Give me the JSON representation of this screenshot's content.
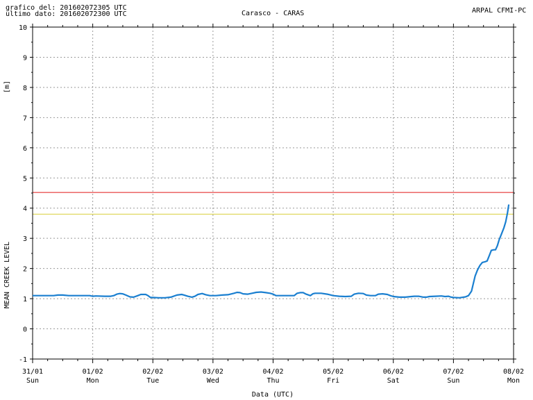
{
  "header": {
    "graph_time": "grafico del: 201602072305 UTC",
    "last_data": "ultimo dato: 201602072300 UTC",
    "station": "Carasco - CARAS",
    "source": "ARPAL CFMI-PC"
  },
  "chart_data": {
    "type": "line",
    "title": "Carasco - CARAS",
    "ylabel_unit": "[m]",
    "ylabel": "MEAN CREEK LEVEL",
    "xlabel": "Data (UTC)",
    "ylim": [
      -1,
      10
    ],
    "y_ticks": [
      -1,
      0,
      1,
      2,
      3,
      4,
      5,
      6,
      7,
      8,
      9,
      10
    ],
    "x_ticks": [
      {
        "date": "31/01",
        "day": "Sun"
      },
      {
        "date": "01/02",
        "day": "Mon"
      },
      {
        "date": "02/02",
        "day": "Tue"
      },
      {
        "date": "03/02",
        "day": "Wed"
      },
      {
        "date": "04/02",
        "day": "Thu"
      },
      {
        "date": "05/02",
        "day": "Fri"
      },
      {
        "date": "06/02",
        "day": "Sat"
      },
      {
        "date": "07/02",
        "day": "Sun"
      },
      {
        "date": "08/02",
        "day": "Mon"
      }
    ],
    "grid": true,
    "thresholds": [
      {
        "value": 4.52,
        "color": "#e01818"
      },
      {
        "value": 3.8,
        "color": "#d8cf3c"
      }
    ],
    "series": [
      {
        "color": "#1a7fd0",
        "points": [
          [
            0.0,
            1.1
          ],
          [
            0.2,
            1.1
          ],
          [
            0.35,
            1.1
          ],
          [
            0.42,
            1.12
          ],
          [
            0.5,
            1.12
          ],
          [
            0.6,
            1.1
          ],
          [
            0.8,
            1.1
          ],
          [
            0.95,
            1.1
          ],
          [
            1.0,
            1.08
          ],
          [
            1.05,
            1.09
          ],
          [
            1.2,
            1.08
          ],
          [
            1.3,
            1.08
          ],
          [
            1.35,
            1.1
          ],
          [
            1.4,
            1.15
          ],
          [
            1.45,
            1.17
          ],
          [
            1.5,
            1.16
          ],
          [
            1.55,
            1.12
          ],
          [
            1.62,
            1.06
          ],
          [
            1.68,
            1.05
          ],
          [
            1.75,
            1.1
          ],
          [
            1.8,
            1.14
          ],
          [
            1.88,
            1.14
          ],
          [
            1.92,
            1.1
          ],
          [
            1.96,
            1.04
          ],
          [
            2.0,
            1.04
          ],
          [
            2.1,
            1.03
          ],
          [
            2.2,
            1.03
          ],
          [
            2.3,
            1.05
          ],
          [
            2.4,
            1.12
          ],
          [
            2.48,
            1.14
          ],
          [
            2.52,
            1.12
          ],
          [
            2.58,
            1.08
          ],
          [
            2.65,
            1.05
          ],
          [
            2.7,
            1.08
          ],
          [
            2.75,
            1.14
          ],
          [
            2.82,
            1.17
          ],
          [
            2.88,
            1.13
          ],
          [
            2.95,
            1.1
          ],
          [
            3.05,
            1.1
          ],
          [
            3.15,
            1.12
          ],
          [
            3.25,
            1.13
          ],
          [
            3.35,
            1.18
          ],
          [
            3.4,
            1.21
          ],
          [
            3.45,
            1.2
          ],
          [
            3.5,
            1.16
          ],
          [
            3.58,
            1.15
          ],
          [
            3.65,
            1.18
          ],
          [
            3.72,
            1.21
          ],
          [
            3.8,
            1.22
          ],
          [
            3.88,
            1.2
          ],
          [
            3.95,
            1.18
          ],
          [
            4.0,
            1.15
          ],
          [
            4.05,
            1.1
          ],
          [
            4.2,
            1.1
          ],
          [
            4.35,
            1.1
          ],
          [
            4.4,
            1.18
          ],
          [
            4.45,
            1.2
          ],
          [
            4.5,
            1.2
          ],
          [
            4.55,
            1.15
          ],
          [
            4.62,
            1.1
          ],
          [
            4.66,
            1.16
          ],
          [
            4.7,
            1.18
          ],
          [
            4.8,
            1.18
          ],
          [
            4.9,
            1.15
          ],
          [
            5.0,
            1.1
          ],
          [
            5.1,
            1.08
          ],
          [
            5.2,
            1.07
          ],
          [
            5.3,
            1.08
          ],
          [
            5.35,
            1.15
          ],
          [
            5.42,
            1.18
          ],
          [
            5.5,
            1.17
          ],
          [
            5.55,
            1.12
          ],
          [
            5.62,
            1.1
          ],
          [
            5.7,
            1.1
          ],
          [
            5.75,
            1.15
          ],
          [
            5.82,
            1.16
          ],
          [
            5.9,
            1.14
          ],
          [
            5.95,
            1.1
          ],
          [
            6.0,
            1.07
          ],
          [
            6.1,
            1.05
          ],
          [
            6.2,
            1.05
          ],
          [
            6.3,
            1.07
          ],
          [
            6.35,
            1.08
          ],
          [
            6.42,
            1.08
          ],
          [
            6.5,
            1.05
          ],
          [
            6.55,
            1.05
          ],
          [
            6.6,
            1.07
          ],
          [
            6.7,
            1.08
          ],
          [
            6.8,
            1.09
          ],
          [
            6.86,
            1.07
          ],
          [
            6.92,
            1.08
          ],
          [
            6.96,
            1.05
          ],
          [
            7.0,
            1.04
          ],
          [
            7.1,
            1.03
          ],
          [
            7.2,
            1.06
          ],
          [
            7.25,
            1.1
          ],
          [
            7.3,
            1.25
          ],
          [
            7.33,
            1.5
          ],
          [
            7.36,
            1.75
          ],
          [
            7.4,
            1.95
          ],
          [
            7.44,
            2.1
          ],
          [
            7.48,
            2.2
          ],
          [
            7.52,
            2.22
          ],
          [
            7.56,
            2.25
          ],
          [
            7.6,
            2.45
          ],
          [
            7.63,
            2.6
          ],
          [
            7.67,
            2.62
          ],
          [
            7.7,
            2.62
          ],
          [
            7.73,
            2.75
          ],
          [
            7.76,
            2.95
          ],
          [
            7.8,
            3.15
          ],
          [
            7.84,
            3.35
          ],
          [
            7.87,
            3.55
          ],
          [
            7.9,
            3.85
          ],
          [
            7.92,
            4.12
          ]
        ]
      }
    ]
  }
}
